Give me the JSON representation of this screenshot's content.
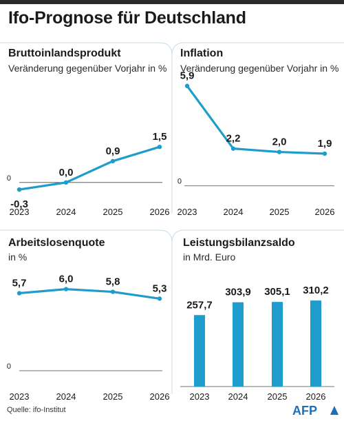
{
  "header": {
    "title": "Ifo-Prognose für Deutschland"
  },
  "footer": {
    "source": "Quelle: ifo-Institut",
    "logo_text": "AFP"
  },
  "colors": {
    "series": "#1e9ccb",
    "divider": "#c7dbe6",
    "text": "#1a1a1a"
  },
  "chart_data": [
    {
      "id": "bip",
      "type": "line",
      "title": "Bruttoinlandsprodukt",
      "subtitle": "Veränderung gegenüber Vorjahr in %",
      "categories": [
        "2023",
        "2024",
        "2025",
        "2026"
      ],
      "values": [
        -0.3,
        0.0,
        0.9,
        1.5
      ],
      "value_labels": [
        "-0,3",
        "0,0",
        "0,9",
        "1,5"
      ],
      "zero_label": "0",
      "ylim": [
        -0.5,
        4.5
      ]
    },
    {
      "id": "inflation",
      "type": "line",
      "title": "Inflation",
      "subtitle": "Veränderung gegenüber Vorjahr in %",
      "categories": [
        "2023",
        "2024",
        "2025",
        "2026"
      ],
      "values": [
        5.9,
        2.2,
        2.0,
        1.9
      ],
      "value_labels": [
        "5,9",
        "2,2",
        "2,0",
        "1,9"
      ],
      "zero_label": "0",
      "ylim": [
        -0.5,
        6.5
      ]
    },
    {
      "id": "arbeitslosenquote",
      "type": "line",
      "title": "Arbeitslosenquote",
      "subtitle": "in %",
      "categories": [
        "2023",
        "2024",
        "2025",
        "2026"
      ],
      "values": [
        5.7,
        6.0,
        5.8,
        5.3
      ],
      "value_labels": [
        "5,7",
        "6,0",
        "5,8",
        "5,3"
      ],
      "zero_label": "0",
      "ylim": [
        0,
        7.5
      ]
    },
    {
      "id": "leistungsbilanzsaldo",
      "type": "bar",
      "title": "Leistungsbilanzsaldo",
      "subtitle": "in Mrd. Euro",
      "categories": [
        "2023",
        "2024",
        "2025",
        "2026"
      ],
      "values": [
        257.7,
        303.9,
        305.1,
        310.2
      ],
      "value_labels": [
        "257,7",
        "303,9",
        "305,1",
        "310,2"
      ],
      "ylim": [
        0,
        400
      ]
    }
  ]
}
